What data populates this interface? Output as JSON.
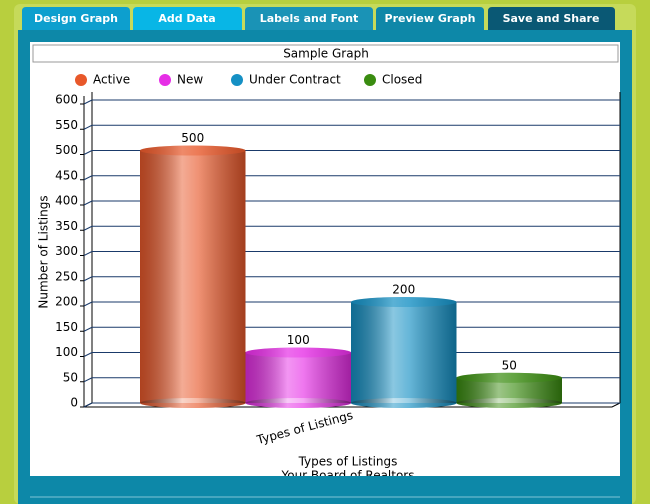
{
  "tabs": [
    "Design Graph",
    "Add Data",
    "Labels and Font",
    "Preview Graph",
    "Save and Share"
  ],
  "chart_data": {
    "type": "bar",
    "title": "Sample Graph",
    "categories": [
      "Types of Listings"
    ],
    "series": [
      {
        "name": "Active",
        "color": "#e8582a",
        "values": [
          500
        ]
      },
      {
        "name": "New",
        "color": "#e62ee6",
        "values": [
          100
        ]
      },
      {
        "name": "Under Contract",
        "color": "#1590c4",
        "values": [
          200
        ]
      },
      {
        "name": "Closed",
        "color": "#3a8c10",
        "values": [
          50
        ]
      }
    ],
    "ylabel": "Number of Listings",
    "xlabel": "Types of Listings",
    "subtitle": "Your Board of Realtors",
    "ylim": [
      0,
      600
    ],
    "yticks": [
      0,
      50,
      100,
      150,
      200,
      250,
      300,
      350,
      400,
      450,
      500,
      550,
      600
    ],
    "grid": true,
    "legend": "top"
  }
}
